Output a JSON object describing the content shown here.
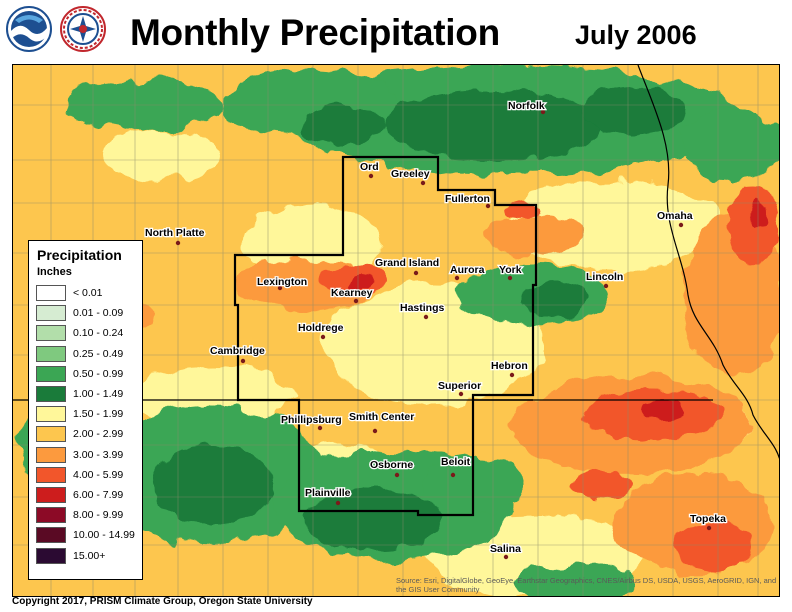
{
  "header": {
    "title": "Monthly Precipitation",
    "date": "July 2006",
    "logos": [
      "noaa-logo",
      "nws-logo"
    ]
  },
  "legend": {
    "title": "Precipitation",
    "units": "Inches",
    "classes": [
      {
        "label": "< 0.01",
        "color": "#ffffff"
      },
      {
        "label": "0.01 - 0.09",
        "color": "#d6ecd2"
      },
      {
        "label": "0.10 - 0.24",
        "color": "#b2deaa"
      },
      {
        "label": "0.25 - 0.49",
        "color": "#7fc97f"
      },
      {
        "label": "0.50 - 0.99",
        "color": "#3ba654"
      },
      {
        "label": "1.00 - 1.49",
        "color": "#1a7b3a"
      },
      {
        "label": "1.50 - 1.99",
        "color": "#fff79a"
      },
      {
        "label": "2.00 - 2.99",
        "color": "#fdc64e"
      },
      {
        "label": "3.00 - 3.99",
        "color": "#fc9a3e"
      },
      {
        "label": "4.00 - 5.99",
        "color": "#f2562b"
      },
      {
        "label": "6.00 - 7.99",
        "color": "#cd1d1d"
      },
      {
        "label": "8.00 - 9.99",
        "color": "#8c0a26"
      },
      {
        "label": "10.00 - 14.99",
        "color": "#5a0a24"
      },
      {
        "label": "15.00+",
        "color": "#2b0a32"
      }
    ]
  },
  "cities": [
    {
      "name": "Norfolk"
    },
    {
      "name": "Ord"
    },
    {
      "name": "Greeley"
    },
    {
      "name": "Fullerton"
    },
    {
      "name": "Omaha"
    },
    {
      "name": "North Platte"
    },
    {
      "name": "Grand Island"
    },
    {
      "name": "Aurora"
    },
    {
      "name": "York"
    },
    {
      "name": "Lincoln"
    },
    {
      "name": "Lexington"
    },
    {
      "name": "Kearney"
    },
    {
      "name": "Hastings"
    },
    {
      "name": "Holdrege"
    },
    {
      "name": "Cambridge"
    },
    {
      "name": "Hebron"
    },
    {
      "name": "Superior"
    },
    {
      "name": "Phillipsburg"
    },
    {
      "name": "Smith Center"
    },
    {
      "name": "Osborne"
    },
    {
      "name": "Beloit"
    },
    {
      "name": "Plainville"
    },
    {
      "name": "Topeka"
    },
    {
      "name": "Salina"
    }
  ],
  "footer": {
    "copyright": "Copyright 2017, PRISM Climate Group, Oregon State University",
    "source": "Source: Esri, DigitalGlobe, GeoEye, Earthstar Geographics, CNES/Airbus DS, USDA, USGS, AeroGRID, IGN, and the GIS User Community"
  },
  "colors": {
    "county_lines": "#8a8a6a",
    "state_lines": "#000000",
    "region_outline": "#000000"
  }
}
